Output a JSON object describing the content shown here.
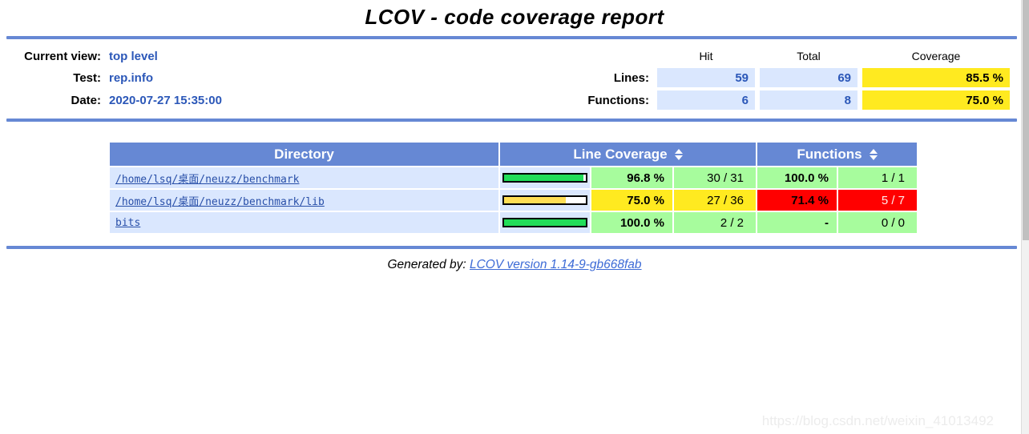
{
  "title": "LCOV - code coverage report",
  "header": {
    "current_view_label": "Current view:",
    "current_view_value": "top level",
    "test_label": "Test:",
    "test_value": "rep.info",
    "date_label": "Date:",
    "date_value": "2020-07-27 15:35:00",
    "summary": {
      "columns": [
        "Hit",
        "Total",
        "Coverage"
      ],
      "rows": [
        {
          "label": "Lines:",
          "hit": "59",
          "total": "69",
          "coverage": "85.5 %",
          "level": "med"
        },
        {
          "label": "Functions:",
          "hit": "6",
          "total": "8",
          "coverage": "75.0 %",
          "level": "med"
        }
      ]
    }
  },
  "table": {
    "directory_header": "Directory",
    "line_coverage_header": "Line Coverage",
    "functions_header": "Functions",
    "rows": [
      {
        "directory": "/home/lsq/桌面/neuzz/benchmark",
        "bar_percent": 96.8,
        "line_level": "hi",
        "line_percent": "96.8 %",
        "line_ratio": "30 / 31",
        "func_level": "hi",
        "func_percent": "100.0 %",
        "func_ratio": "1 / 1"
      },
      {
        "directory": "/home/lsq/桌面/neuzz/benchmark/lib",
        "bar_percent": 75.0,
        "line_level": "med",
        "line_percent": "75.0 %",
        "line_ratio": "27 / 36",
        "func_level": "lo",
        "func_percent": "71.4 %",
        "func_ratio": "5 / 7"
      },
      {
        "directory": "bits",
        "bar_percent": 100,
        "line_level": "hi",
        "line_percent": "100.0 %",
        "line_ratio": "2 / 2",
        "func_level": "hi",
        "func_percent": "-",
        "func_ratio": "0 / 0"
      }
    ]
  },
  "footer": {
    "generated_by_label": "Generated by:",
    "version_link": "LCOV version 1.14-9-gb668fab"
  },
  "watermark": "https://blog.csdn.net/weixin_41013492",
  "colors": {
    "accent_blue": "#6688D4",
    "row_blue": "#DAE7FE",
    "link_blue": "#284FA8",
    "coverage_high": "#A7FC9D",
    "coverage_medium": "#FFEA20",
    "coverage_low": "#FF0000",
    "bar_green": "#21DD58",
    "bar_yellow": "#FFDE55"
  }
}
